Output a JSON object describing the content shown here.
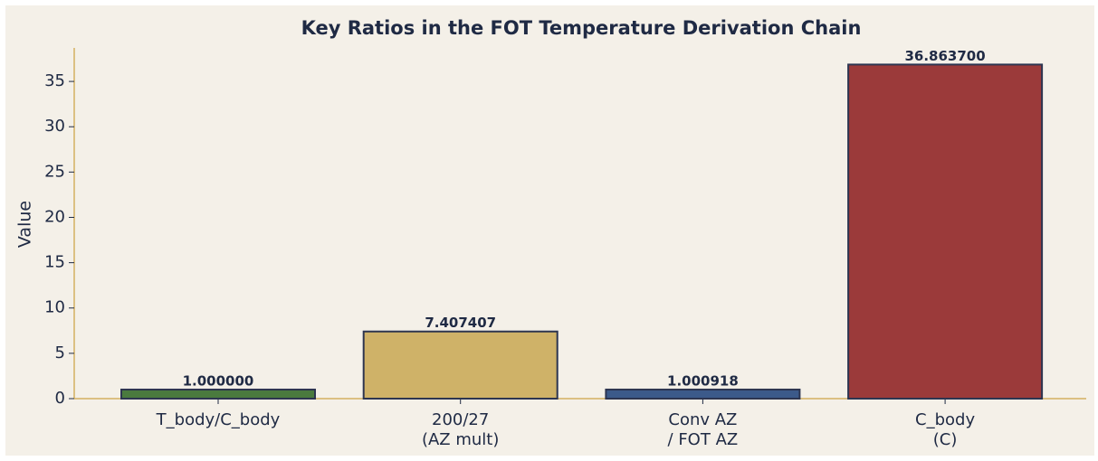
{
  "chart_data": {
    "type": "bar",
    "title": "Key Ratios in the FOT Temperature Derivation Chain",
    "ylabel": "Value",
    "categories": [
      "T_body/C_body",
      "200/27\n(AZ mult)",
      "Conv AZ\n/ FOT AZ",
      "C_body\n(C)"
    ],
    "values": [
      1,
      7.407407,
      1.000918,
      36.8637
    ],
    "value_labels": [
      "1.000000",
      "7.407407",
      "1.000918",
      "36.863700"
    ],
    "colors": [
      "#4a7a3e",
      "#cfb268",
      "#3c5a8a",
      "#9b3a3a"
    ],
    "ylim": [
      0,
      38.7
    ],
    "yticks": [
      0,
      5,
      10,
      15,
      20,
      25,
      30,
      35
    ],
    "grid": false
  }
}
